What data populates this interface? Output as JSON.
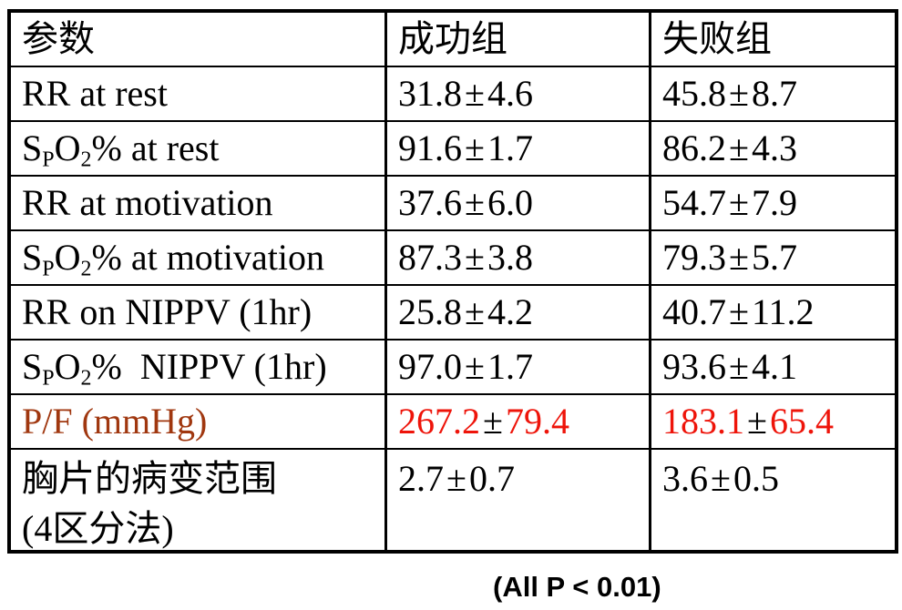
{
  "table": {
    "pm_sign": "±",
    "headers": [
      {
        "label": "参数"
      },
      {
        "label": "成功组"
      },
      {
        "label": "失败组"
      }
    ],
    "rows": [
      {
        "label_lines": [
          [
            {
              "t": "RR at rest"
            }
          ]
        ],
        "success": {
          "mean": "31.8",
          "sd": "4.6"
        },
        "failure": {
          "mean": "45.8",
          "sd": "8.7"
        },
        "highlight": false,
        "tall": false
      },
      {
        "label_lines": [
          [
            {
              "t": "S"
            },
            {
              "t": "P",
              "sub": true
            },
            {
              "t": "O"
            },
            {
              "t": "2",
              "sub": true
            },
            {
              "t": "% at rest"
            }
          ]
        ],
        "success": {
          "mean": "91.6",
          "sd": "1.7"
        },
        "failure": {
          "mean": "86.2",
          "sd": "4.3"
        },
        "highlight": false,
        "tall": false
      },
      {
        "label_lines": [
          [
            {
              "t": "RR at motivation"
            }
          ]
        ],
        "success": {
          "mean": "37.6",
          "sd": "6.0"
        },
        "failure": {
          "mean": "54.7",
          "sd": "7.9"
        },
        "highlight": false,
        "tall": false
      },
      {
        "label_lines": [
          [
            {
              "t": "S"
            },
            {
              "t": "P",
              "sub": true
            },
            {
              "t": "O"
            },
            {
              "t": "2",
              "sub": true
            },
            {
              "t": "% at motivation"
            }
          ]
        ],
        "success": {
          "mean": "87.3",
          "sd": "3.8"
        },
        "failure": {
          "mean": "79.3",
          "sd": "5.7"
        },
        "highlight": false,
        "tall": false
      },
      {
        "label_lines": [
          [
            {
              "t": "RR on NIPPV (1hr)"
            }
          ]
        ],
        "success": {
          "mean": "25.8",
          "sd": "4.2"
        },
        "failure": {
          "mean": "40.7",
          "sd": "11.2"
        },
        "highlight": false,
        "tall": false
      },
      {
        "label_lines": [
          [
            {
              "t": "S"
            },
            {
              "t": "P",
              "sub": true
            },
            {
              "t": "O"
            },
            {
              "t": "2",
              "sub": true
            },
            {
              "t": "%  NIPPV (1hr)"
            }
          ]
        ],
        "success": {
          "mean": "97.0",
          "sd": "1.7"
        },
        "failure": {
          "mean": "93.6",
          "sd": "4.1"
        },
        "highlight": false,
        "tall": false
      },
      {
        "label_lines": [
          [
            {
              "t": "P/F (mmHg)"
            }
          ]
        ],
        "success": {
          "mean": "267.2",
          "sd": "79.4"
        },
        "failure": {
          "mean": "183.1",
          "sd": "65.4"
        },
        "highlight": true,
        "tall": false
      },
      {
        "label_lines": [
          [
            {
              "t": "胸片的病变范围"
            }
          ],
          [
            {
              "t": "(4区分法)"
            }
          ]
        ],
        "success": {
          "mean": "2.7",
          "sd": "0.7"
        },
        "failure": {
          "mean": "3.6",
          "sd": "0.5"
        },
        "highlight": false,
        "tall": true
      }
    ]
  },
  "footer": {
    "note": "(All P < 0.01)"
  },
  "colors": {
    "background": "#FFFFFF",
    "border": "#000000",
    "text": "#000000",
    "highlight_label": "#A0370F",
    "highlight_value": "#EE140A"
  },
  "chart_data": {
    "type": "table",
    "columns": [
      "参数",
      "成功组",
      "失败组"
    ],
    "rows": [
      [
        "RR at rest",
        "31.8±4.6",
        "45.8±8.7"
      ],
      [
        "SpO2% at rest",
        "91.6±1.7",
        "86.2±4.3"
      ],
      [
        "RR at motivation",
        "37.6±6.0",
        "54.7±7.9"
      ],
      [
        "SpO2% at motivation",
        "87.3±3.8",
        "79.3±5.7"
      ],
      [
        "RR on NIPPV (1hr)",
        "25.8±4.2",
        "40.7±11.2"
      ],
      [
        "SpO2% NIPPV (1hr)",
        "97.0±1.7",
        "93.6±4.1"
      ],
      [
        "P/F (mmHg)",
        "267.2±79.4",
        "183.1±65.4"
      ],
      [
        "胸片的病变范围 (4区分法)",
        "2.7±0.7",
        "3.6±0.5"
      ]
    ],
    "annotation": "(All P < 0.01)"
  }
}
